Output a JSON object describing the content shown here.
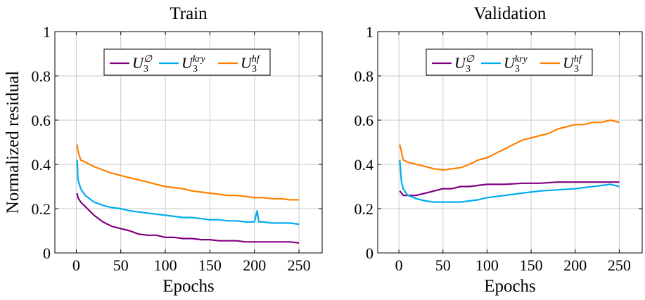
{
  "chart_data": [
    {
      "type": "line",
      "title": "Train",
      "xlabel": "Epochs",
      "ylabel": "Normalized residual",
      "xlim": [
        -24,
        276
      ],
      "ylim": [
        0,
        1
      ],
      "xticks": [
        0,
        50,
        100,
        150,
        200,
        250
      ],
      "yticks": [
        0,
        0.2,
        0.4,
        0.6,
        0.8,
        1
      ],
      "ytick_labels": [
        "0",
        "0.2",
        "0.4",
        "0.6",
        "0.8",
        "1"
      ],
      "grid": true,
      "legend_position": "top-center",
      "series": [
        {
          "name": "U_3^∅",
          "label": {
            "base": "U",
            "sub": "3",
            "sup": "∅"
          },
          "color": "#800080",
          "x": [
            1,
            2,
            5,
            10,
            20,
            30,
            40,
            50,
            60,
            70,
            80,
            90,
            100,
            110,
            120,
            130,
            140,
            150,
            160,
            170,
            180,
            190,
            200,
            210,
            220,
            230,
            240,
            250
          ],
          "y": [
            0.27,
            0.25,
            0.23,
            0.21,
            0.17,
            0.14,
            0.12,
            0.11,
            0.1,
            0.085,
            0.08,
            0.08,
            0.07,
            0.07,
            0.065,
            0.065,
            0.06,
            0.06,
            0.055,
            0.055,
            0.055,
            0.05,
            0.05,
            0.05,
            0.05,
            0.05,
            0.05,
            0.045
          ]
        },
        {
          "name": "U_3^kry",
          "label": {
            "base": "U",
            "sub": "3",
            "sup": "kry"
          },
          "color": "#00adef",
          "x": [
            1,
            2,
            5,
            10,
            20,
            30,
            40,
            50,
            60,
            70,
            80,
            90,
            100,
            110,
            120,
            130,
            140,
            150,
            160,
            170,
            180,
            190,
            200,
            203,
            205,
            210,
            220,
            230,
            240,
            250
          ],
          "y": [
            0.42,
            0.33,
            0.29,
            0.26,
            0.23,
            0.215,
            0.205,
            0.2,
            0.19,
            0.185,
            0.18,
            0.175,
            0.17,
            0.165,
            0.16,
            0.16,
            0.155,
            0.15,
            0.15,
            0.145,
            0.145,
            0.14,
            0.14,
            0.19,
            0.14,
            0.14,
            0.135,
            0.135,
            0.135,
            0.13
          ]
        },
        {
          "name": "U_3^hf",
          "label": {
            "base": "U",
            "sub": "3",
            "sup": "hf"
          },
          "color": "#ff8000",
          "x": [
            1,
            2,
            5,
            10,
            20,
            30,
            40,
            50,
            60,
            70,
            80,
            90,
            100,
            110,
            120,
            130,
            140,
            150,
            160,
            170,
            180,
            190,
            200,
            210,
            220,
            230,
            240,
            250
          ],
          "y": [
            0.49,
            0.46,
            0.42,
            0.41,
            0.39,
            0.375,
            0.36,
            0.35,
            0.34,
            0.33,
            0.32,
            0.31,
            0.3,
            0.295,
            0.29,
            0.28,
            0.275,
            0.27,
            0.265,
            0.26,
            0.26,
            0.255,
            0.25,
            0.25,
            0.245,
            0.245,
            0.24,
            0.24
          ]
        }
      ]
    },
    {
      "type": "line",
      "title": "Validation",
      "xlabel": "Epochs",
      "ylabel": "",
      "xlim": [
        -24,
        276
      ],
      "ylim": [
        0,
        1
      ],
      "xticks": [
        0,
        50,
        100,
        150,
        200,
        250
      ],
      "yticks": [
        0,
        0.2,
        0.4,
        0.6,
        0.8,
        1
      ],
      "ytick_labels": [
        "0",
        "0.2",
        "0.4",
        "0.6",
        "0.8",
        "1"
      ],
      "grid": true,
      "legend_position": "top-center",
      "series": [
        {
          "name": "U_3^∅",
          "label": {
            "base": "U",
            "sub": "3",
            "sup": "∅"
          },
          "color": "#800080",
          "x": [
            1,
            5,
            10,
            20,
            30,
            40,
            50,
            60,
            70,
            80,
            90,
            100,
            120,
            140,
            160,
            180,
            200,
            220,
            240,
            250
          ],
          "y": [
            0.28,
            0.26,
            0.26,
            0.26,
            0.27,
            0.28,
            0.29,
            0.29,
            0.3,
            0.3,
            0.305,
            0.31,
            0.31,
            0.315,
            0.315,
            0.32,
            0.32,
            0.32,
            0.32,
            0.32
          ]
        },
        {
          "name": "U_3^kry",
          "label": {
            "base": "U",
            "sub": "3",
            "sup": "kry"
          },
          "color": "#00adef",
          "x": [
            1,
            3,
            5,
            10,
            20,
            30,
            40,
            50,
            60,
            70,
            80,
            90,
            100,
            120,
            140,
            160,
            180,
            200,
            220,
            240,
            250
          ],
          "y": [
            0.42,
            0.32,
            0.29,
            0.26,
            0.245,
            0.235,
            0.23,
            0.23,
            0.23,
            0.23,
            0.235,
            0.24,
            0.25,
            0.26,
            0.27,
            0.28,
            0.285,
            0.29,
            0.3,
            0.31,
            0.3
          ]
        },
        {
          "name": "U_3^hf",
          "label": {
            "base": "U",
            "sub": "3",
            "sup": "hf"
          },
          "color": "#ff8000",
          "x": [
            1,
            5,
            10,
            20,
            30,
            40,
            50,
            60,
            70,
            80,
            90,
            100,
            110,
            120,
            130,
            140,
            150,
            160,
            170,
            180,
            190,
            200,
            210,
            220,
            230,
            240,
            250
          ],
          "y": [
            0.49,
            0.42,
            0.41,
            0.4,
            0.39,
            0.38,
            0.375,
            0.38,
            0.385,
            0.4,
            0.42,
            0.43,
            0.45,
            0.47,
            0.49,
            0.51,
            0.52,
            0.53,
            0.54,
            0.56,
            0.57,
            0.58,
            0.58,
            0.59,
            0.59,
            0.6,
            0.59
          ]
        }
      ]
    }
  ]
}
